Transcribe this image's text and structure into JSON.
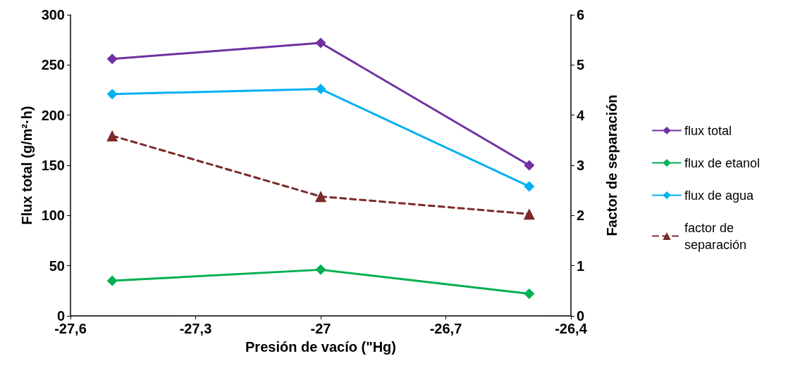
{
  "chart_data": {
    "type": "line",
    "xlabel": "Presión de vacío (\"Hg)",
    "ylabel": "Flux total (g/m²·h)",
    "y2label": "Factor de separación",
    "x": [
      -27.5,
      -27,
      -26.5
    ],
    "xlim": [
      -27.6,
      -26.4
    ],
    "xticks": [
      {
        "value": -27.6,
        "label": "-27,6"
      },
      {
        "value": -27.3,
        "label": "-27,3"
      },
      -27,
      {
        "value": -26.7,
        "label": "-26,7"
      },
      {
        "value": -26.4,
        "label": "-26,4"
      }
    ],
    "ylim": [
      0,
      300
    ],
    "yticks": [
      0,
      50,
      100,
      150,
      200,
      250,
      300
    ],
    "y2lim": [
      0,
      6
    ],
    "y2ticks": [
      0,
      1,
      2,
      3,
      4,
      5,
      6
    ],
    "grid": false,
    "legend": "right",
    "marker": "diamond",
    "line_style": "solid",
    "series": [
      {
        "name": "flux total",
        "color": "#7030a0",
        "values": [
          256,
          272,
          150
        ]
      },
      {
        "name": "flux de etanol",
        "color": "#00b050",
        "values": [
          35,
          46,
          22
        ]
      },
      {
        "name": "flux de agua",
        "color": "#00b0f0",
        "values": [
          221,
          226,
          129
        ]
      },
      {
        "name": "factor de separación",
        "color": "#7b2a2a",
        "values": [
          3.59,
          2.38,
          2.03
        ],
        "axis": "y2",
        "marker": "triangle",
        "line_style": "dashed"
      }
    ]
  }
}
